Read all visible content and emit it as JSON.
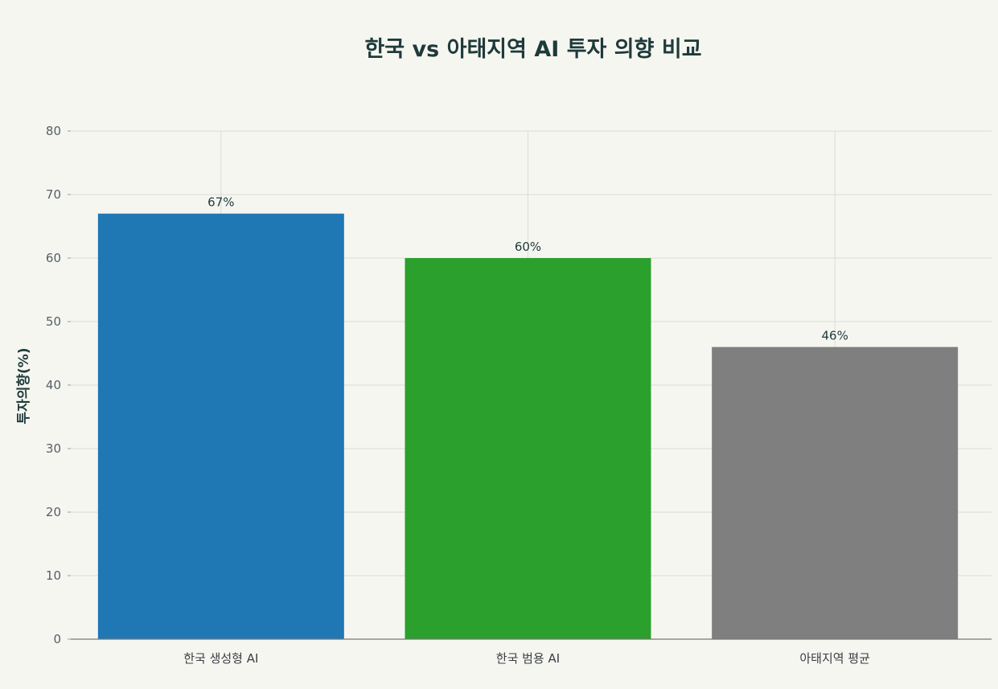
{
  "chart_data": {
    "type": "bar",
    "title": "한국 vs 아태지역 AI 투자 의향 비교",
    "xlabel": "",
    "ylabel": "투자의향(%)",
    "categories": [
      "한국 생성형 AI",
      "한국 범용 AI",
      "아태지역 평균"
    ],
    "values": [
      67,
      60,
      46
    ],
    "data_labels": [
      "67%",
      "60%",
      "46%"
    ],
    "colors": [
      "#1f77b4",
      "#2ca02c",
      "#7f7f7f"
    ],
    "ylim": [
      0,
      80
    ],
    "yticks": [
      0,
      10,
      20,
      30,
      40,
      50,
      60,
      70,
      80
    ],
    "grid": true,
    "legend": "none"
  }
}
